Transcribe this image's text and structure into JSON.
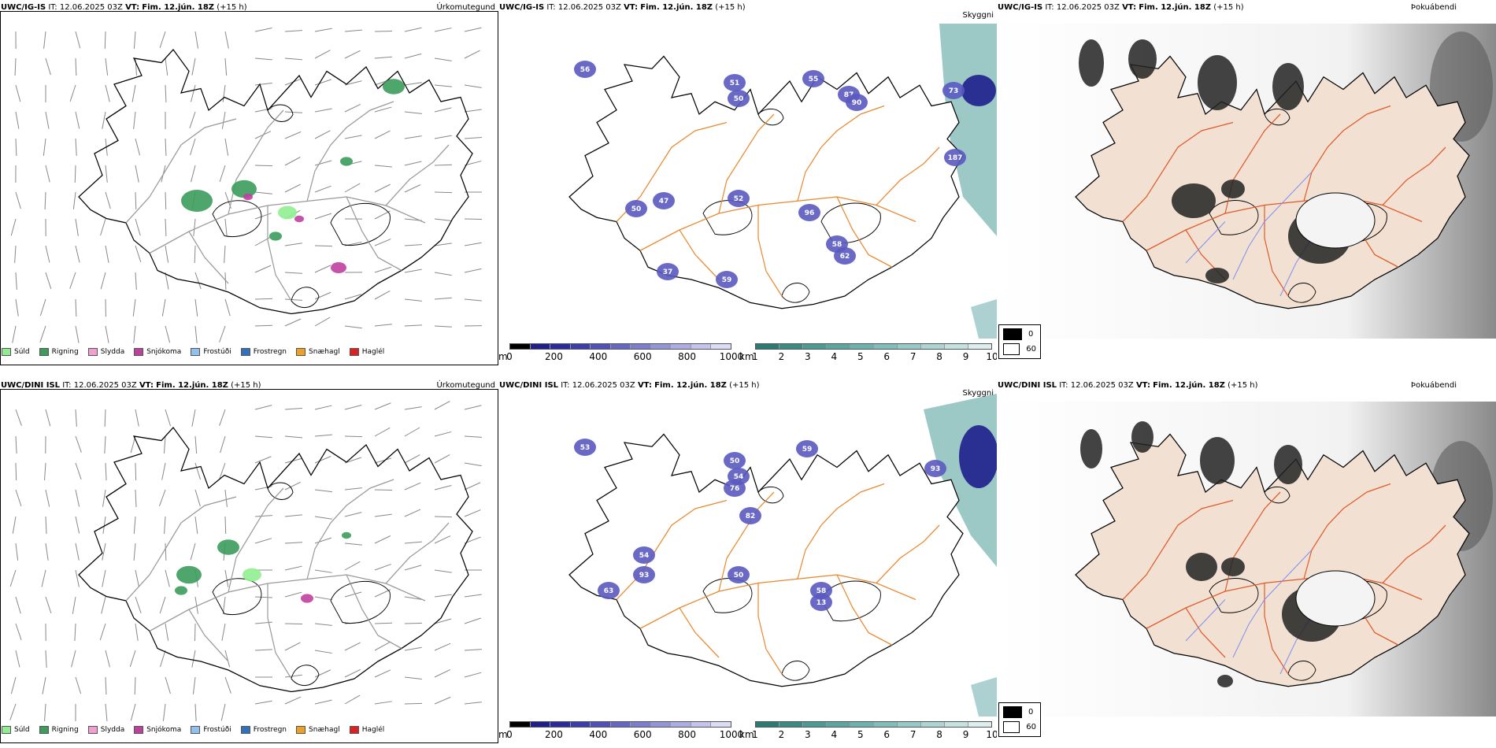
{
  "rows": [
    {
      "model": "UWC/IG-IS",
      "it_label": "IT:",
      "it_value": "12.06.2025 03Z",
      "vt_label": "VT:",
      "vt_value": "Fim. 12.jún. 18Z",
      "lead": "(+15 h)",
      "titles": [
        "Úrkomutegund",
        "Skyggni",
        "Þokuábendi"
      ],
      "precip_cells": [
        "50",
        "47",
        "52",
        "51",
        "50",
        "55",
        "87",
        "90",
        "96",
        "58",
        "62",
        "37",
        "59",
        "73",
        "187",
        "56"
      ]
    },
    {
      "model": "UWC/DINI ISL",
      "it_label": "IT:",
      "it_value": "12.06.2025 03Z",
      "vt_label": "VT:",
      "vt_value": "Fim. 12.jún. 18Z",
      "lead": "(+15 h)",
      "titles": [
        "Úrkomutegund",
        "Skyggni",
        "Þokuábendi"
      ],
      "precip_cells": [
        "54",
        "93",
        "63",
        "50",
        "58",
        "13",
        "50",
        "54",
        "76",
        "82",
        "59",
        "93",
        "53"
      ]
    }
  ],
  "precip_legend": [
    {
      "label": "Súld",
      "color": "#90ee90"
    },
    {
      "label": "Rigning",
      "color": "#3c9c5c"
    },
    {
      "label": "Slydda",
      "color": "#f0a0d0"
    },
    {
      "label": "Snjókoma",
      "color": "#c040a0"
    },
    {
      "label": "Frostúði",
      "color": "#90c0f0"
    },
    {
      "label": "Frostregn",
      "color": "#3070c0"
    },
    {
      "label": "Snæhagl",
      "color": "#f0a020"
    },
    {
      "label": "Haglél",
      "color": "#e02020"
    }
  ],
  "cloud_base_bar": {
    "unit": "m",
    "ticks": [
      "0",
      "200",
      "400",
      "600",
      "800",
      "1000"
    ]
  },
  "visibility_bar": {
    "unit": "km",
    "ticks": [
      "1",
      "2",
      "3",
      "4",
      "5",
      "6",
      "7",
      "8",
      "9",
      "10"
    ]
  },
  "fog_legend": [
    {
      "label": "0",
      "color": "#000000"
    },
    {
      "label": "60",
      "color": "#ffffff"
    }
  ],
  "colors": {
    "land_fog": "#f2e1d2",
    "roads": "#e05a2a",
    "roads_orange": "#e8892e",
    "rivers": "#7c8ff0",
    "cloud_dark": "#1e1e8c",
    "cloud_mid": "#5a5ac0",
    "vis_teal": "#4a9a98"
  }
}
